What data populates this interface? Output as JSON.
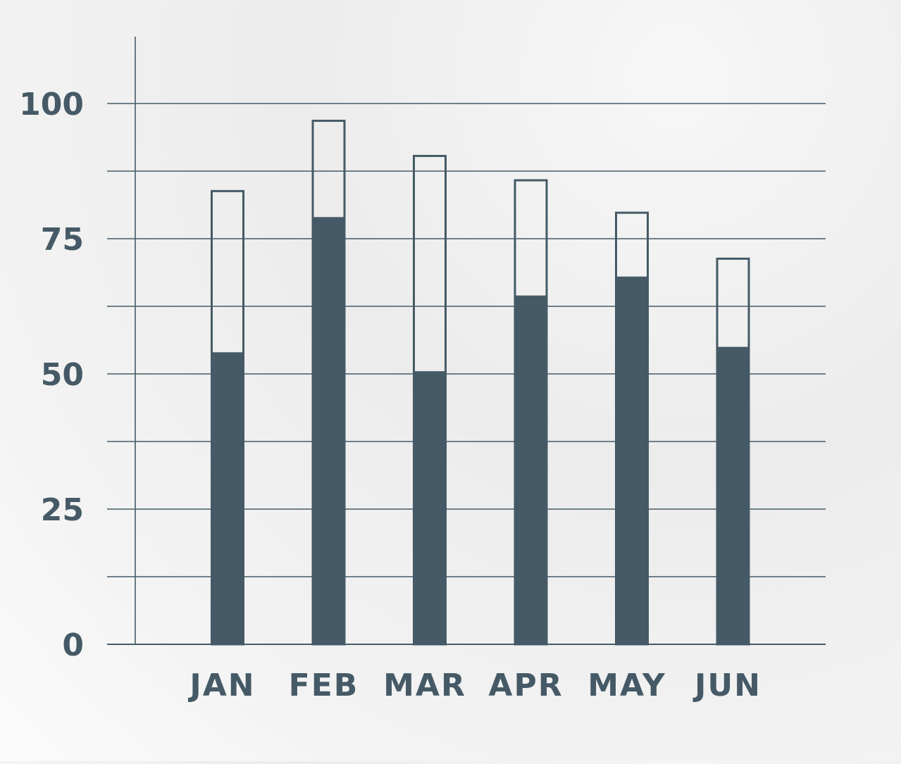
{
  "chart_data": {
    "type": "bar",
    "categories": [
      "JAN",
      "FEB",
      "MAR",
      "APR",
      "MAY",
      "JUN"
    ],
    "series": [
      {
        "values": [
          54,
          79,
          50.5,
          64.5,
          68,
          55
        ]
      },
      {
        "values": [
          84,
          97,
          90.5,
          86,
          80,
          71.5
        ]
      }
    ],
    "stacking": "overlay",
    "title": "",
    "xlabel": "",
    "ylabel": "",
    "ylim": [
      0,
      112
    ],
    "yticks": [
      0,
      25,
      50,
      75,
      100
    ],
    "ytick_labels": [
      "0",
      "25",
      "50",
      "75",
      "100"
    ],
    "gridlines": [
      12.5,
      25,
      37.5,
      50,
      62.5,
      75,
      87.5,
      100
    ],
    "grid": true,
    "legend": "none",
    "colors": {
      "bar_fill": "#455a66",
      "outline": "#455a66",
      "grid": "#455a66",
      "text": "#455a66"
    }
  }
}
